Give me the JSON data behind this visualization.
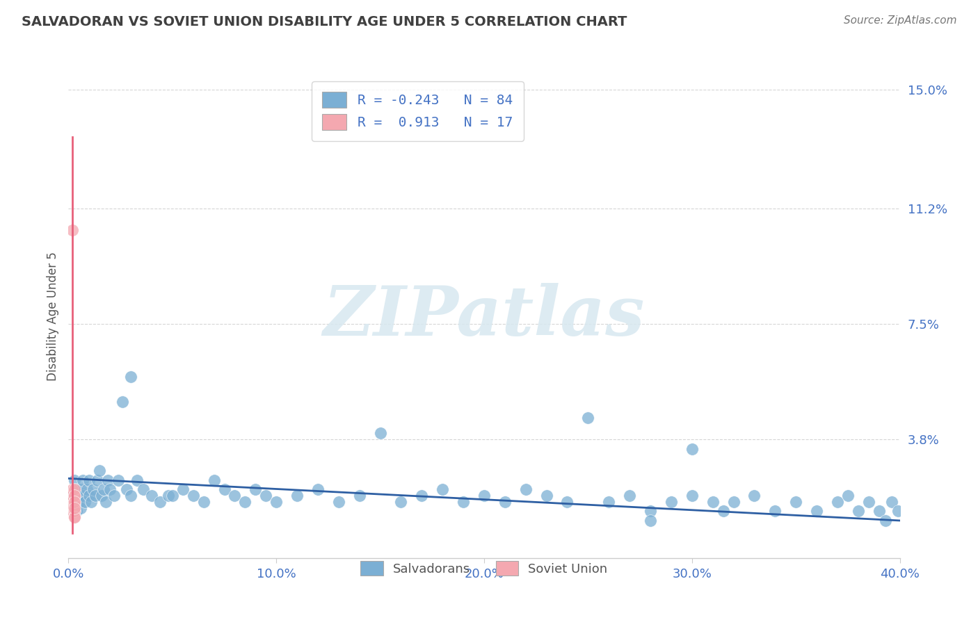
{
  "title": "SALVADORAN VS SOVIET UNION DISABILITY AGE UNDER 5 CORRELATION CHART",
  "source": "Source: ZipAtlas.com",
  "ylabel": "Disability Age Under 5",
  "xlim": [
    0.0,
    0.4
  ],
  "ylim": [
    0.0,
    0.155
  ],
  "xticks": [
    0.0,
    0.1,
    0.2,
    0.3,
    0.4
  ],
  "xtick_labels": [
    "0.0%",
    "10.0%",
    "20.0%",
    "30.0%",
    "40.0%"
  ],
  "yticks": [
    0.038,
    0.075,
    0.112,
    0.15
  ],
  "ytick_labels": [
    "3.8%",
    "7.5%",
    "11.2%",
    "15.0%"
  ],
  "blue_color": "#7BAFD4",
  "pink_color": "#F4A8B0",
  "blue_line_color": "#2E5FA3",
  "pink_line_color": "#E8607A",
  "R_blue": -0.243,
  "N_blue": 84,
  "R_pink": 0.913,
  "N_pink": 17,
  "legend_labels": [
    "Salvadorans",
    "Soviet Union"
  ],
  "watermark": "ZIPatlas",
  "background_color": "#FFFFFF",
  "grid_color": "#BBBBBB",
  "text_color": "#4472C4",
  "title_color": "#404040",
  "blue_scatter_x": [
    0.002,
    0.003,
    0.003,
    0.004,
    0.004,
    0.005,
    0.005,
    0.006,
    0.006,
    0.007,
    0.007,
    0.008,
    0.009,
    0.01,
    0.01,
    0.011,
    0.012,
    0.013,
    0.014,
    0.015,
    0.016,
    0.017,
    0.018,
    0.019,
    0.02,
    0.022,
    0.024,
    0.026,
    0.028,
    0.03,
    0.033,
    0.036,
    0.04,
    0.044,
    0.048,
    0.055,
    0.06,
    0.065,
    0.07,
    0.075,
    0.08,
    0.085,
    0.09,
    0.095,
    0.1,
    0.11,
    0.12,
    0.13,
    0.14,
    0.15,
    0.16,
    0.17,
    0.18,
    0.19,
    0.2,
    0.21,
    0.22,
    0.23,
    0.24,
    0.25,
    0.26,
    0.27,
    0.28,
    0.29,
    0.3,
    0.31,
    0.315,
    0.32,
    0.33,
    0.34,
    0.35,
    0.36,
    0.37,
    0.375,
    0.38,
    0.385,
    0.39,
    0.393,
    0.396,
    0.399,
    0.3,
    0.28,
    0.03,
    0.05
  ],
  "blue_scatter_y": [
    0.02,
    0.018,
    0.025,
    0.022,
    0.015,
    0.02,
    0.018,
    0.022,
    0.016,
    0.02,
    0.025,
    0.018,
    0.022,
    0.025,
    0.02,
    0.018,
    0.022,
    0.02,
    0.025,
    0.028,
    0.02,
    0.022,
    0.018,
    0.025,
    0.022,
    0.02,
    0.025,
    0.05,
    0.022,
    0.02,
    0.025,
    0.022,
    0.02,
    0.018,
    0.02,
    0.022,
    0.02,
    0.018,
    0.025,
    0.022,
    0.02,
    0.018,
    0.022,
    0.02,
    0.018,
    0.02,
    0.022,
    0.018,
    0.02,
    0.04,
    0.018,
    0.02,
    0.022,
    0.018,
    0.02,
    0.018,
    0.022,
    0.02,
    0.018,
    0.045,
    0.018,
    0.02,
    0.015,
    0.018,
    0.02,
    0.018,
    0.015,
    0.018,
    0.02,
    0.015,
    0.018,
    0.015,
    0.018,
    0.02,
    0.015,
    0.018,
    0.015,
    0.012,
    0.018,
    0.015,
    0.035,
    0.012,
    0.058,
    0.02
  ],
  "pink_scatter_x": [
    0.002,
    0.002,
    0.002,
    0.002,
    0.002,
    0.002,
    0.003,
    0.003,
    0.003,
    0.003,
    0.003,
    0.003,
    0.003,
    0.003,
    0.003,
    0.003,
    0.003
  ],
  "pink_scatter_y": [
    0.105,
    0.018,
    0.02,
    0.015,
    0.022,
    0.017,
    0.02,
    0.018,
    0.022,
    0.015,
    0.013,
    0.017,
    0.02,
    0.015,
    0.018,
    0.013,
    0.016
  ],
  "pink_line_x": [
    0.002,
    0.003
  ],
  "pink_line_y_start": 0.012,
  "pink_line_y_end": 0.13
}
